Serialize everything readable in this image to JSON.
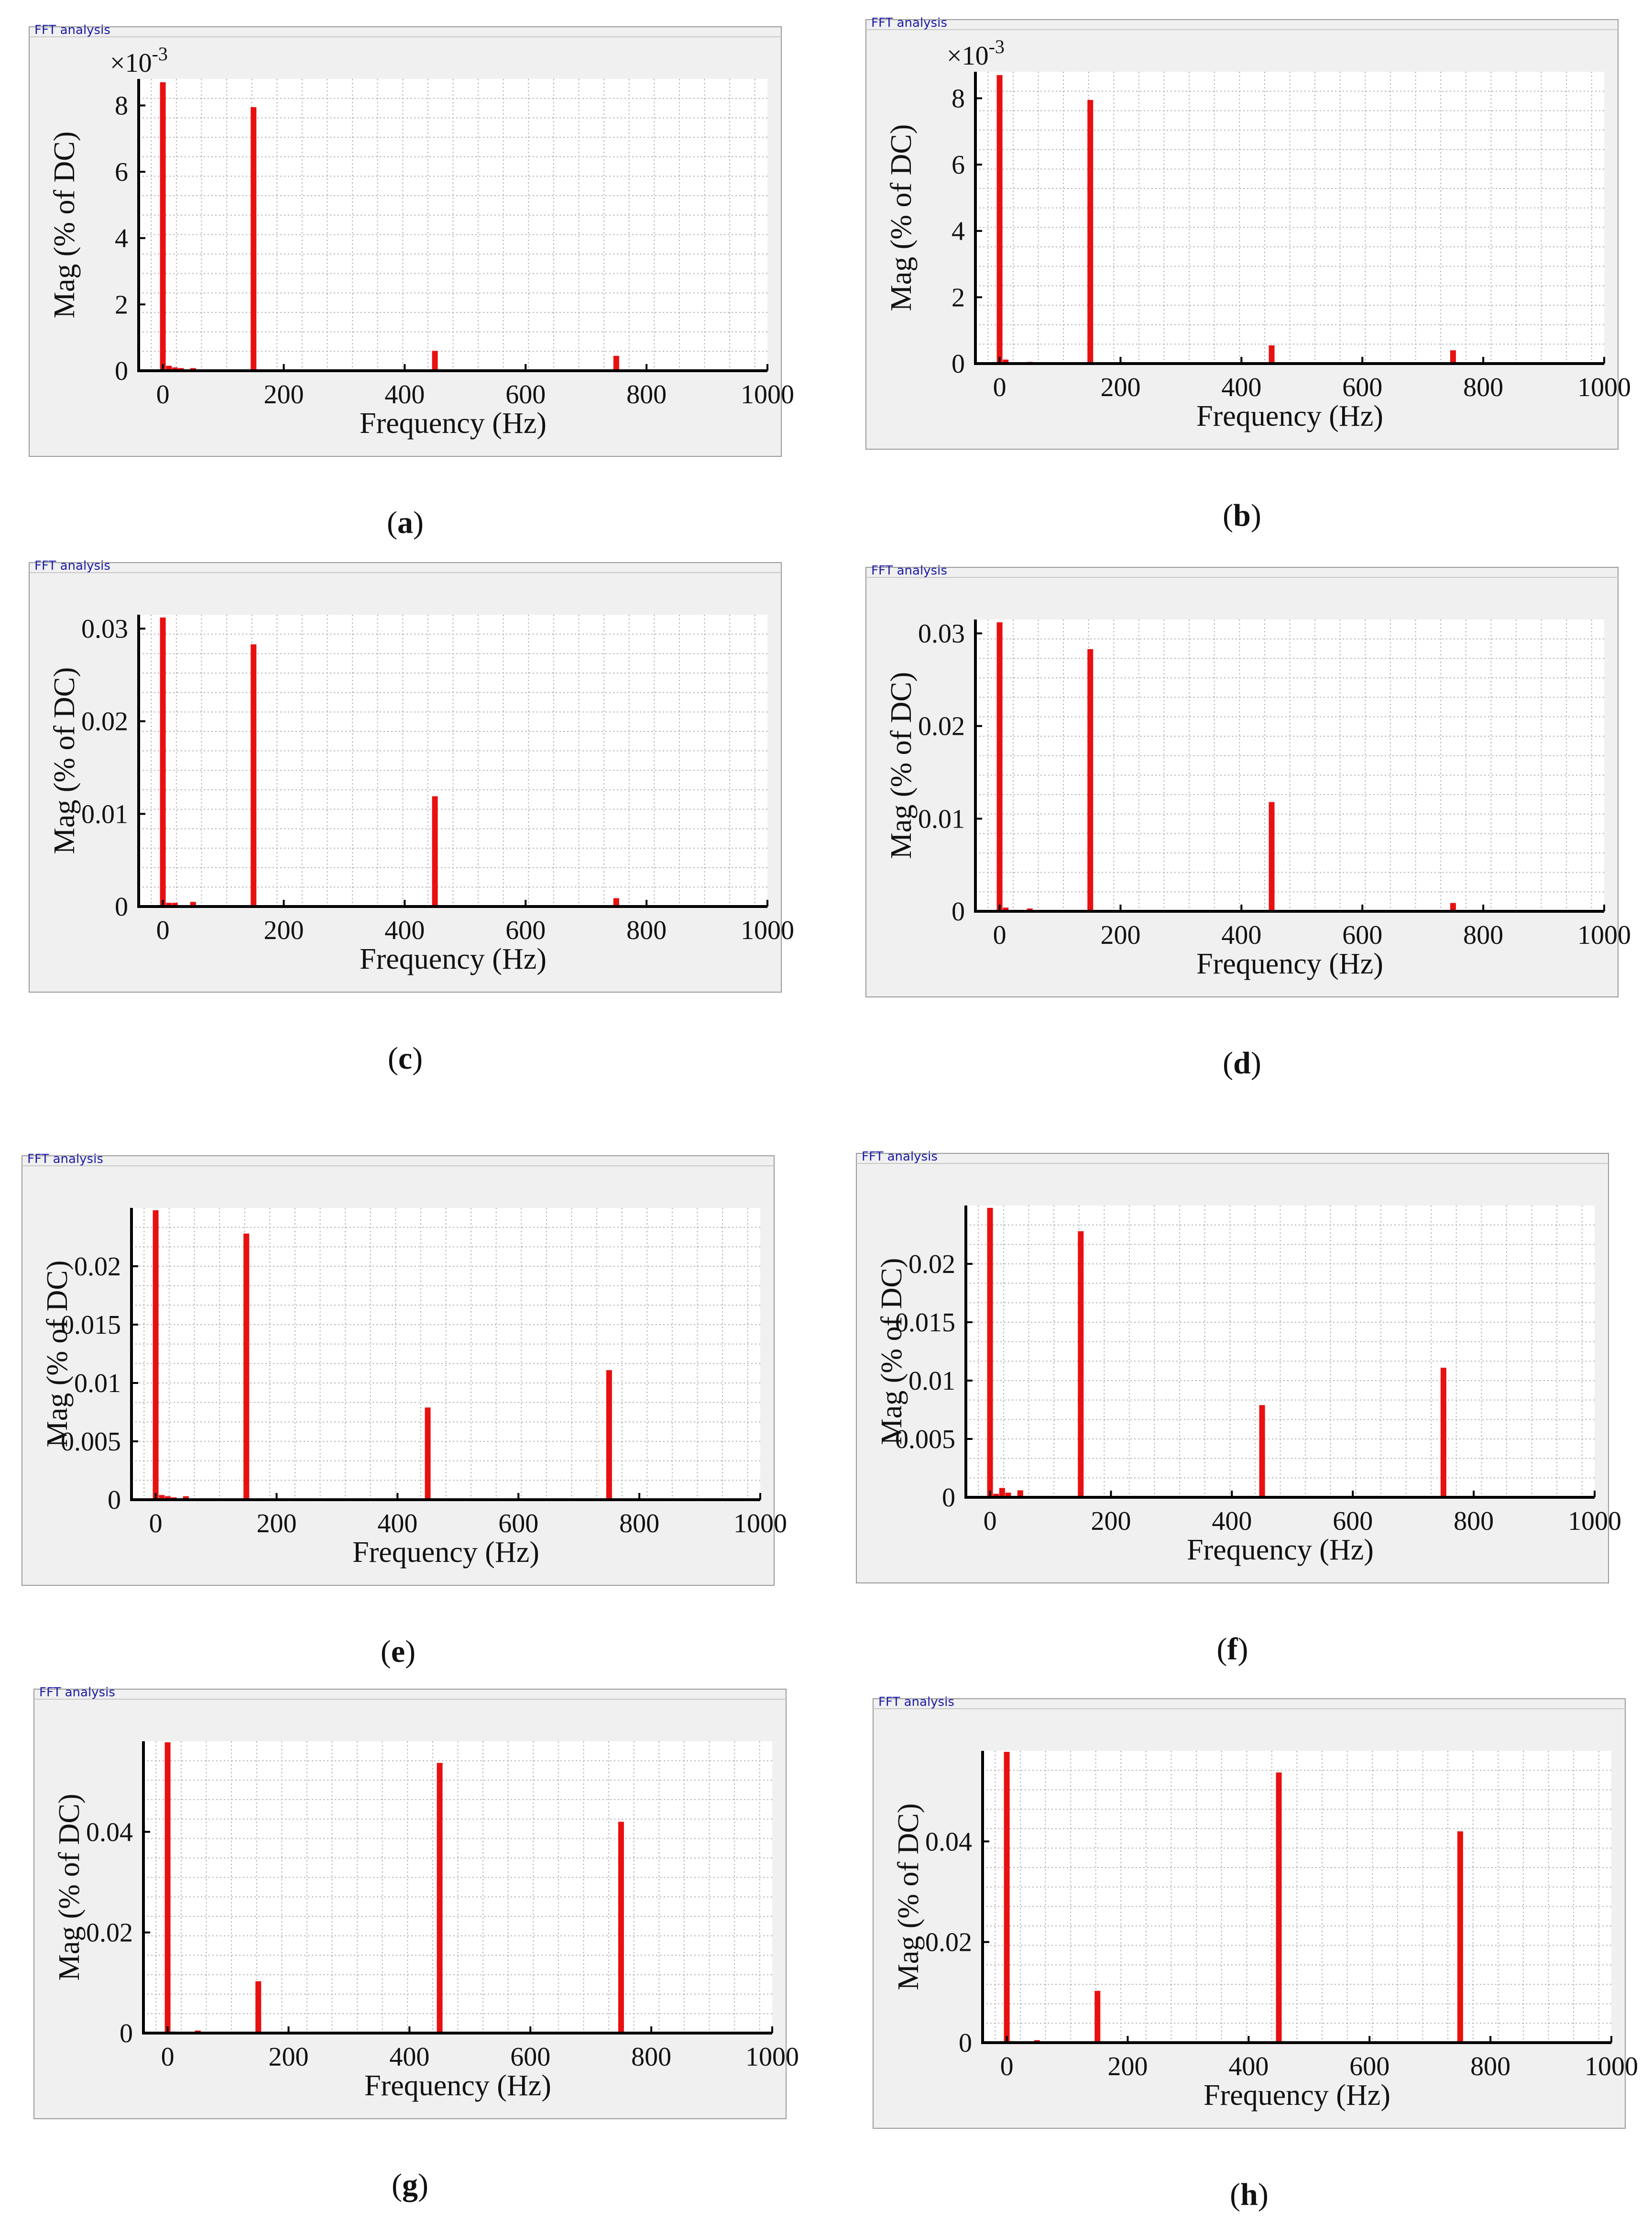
{
  "header_label": "FFT analysis",
  "colors": {
    "bar": "#e81010",
    "panel_bg": "#f0f0f0",
    "plot_bg": "#ffffff",
    "grid": "#b4b4b4",
    "title": "#1a1aa8"
  },
  "chart_data": [
    {
      "id": "a",
      "type": "bar",
      "caption_letter": "a",
      "header": "FFT analysis",
      "xlabel": "Frequency (Hz)",
      "ylabel": "Mag (% of DC)",
      "xlim": [
        -40,
        1000
      ],
      "ylim": [
        0,
        8.8
      ],
      "xticks": [
        "0",
        "200",
        "400",
        "600",
        "800",
        "1000"
      ],
      "yticks": [
        "0",
        "2",
        "4",
        "6",
        "8"
      ],
      "scale_prefix": "×10",
      "scale_exponent": "-3",
      "bars": [
        {
          "x": 0,
          "y": 8.7
        },
        {
          "x": 10,
          "y": 0.15
        },
        {
          "x": 20,
          "y": 0.1
        },
        {
          "x": 30,
          "y": 0.08
        },
        {
          "x": 50,
          "y": 0.08
        },
        {
          "x": 150,
          "y": 7.95
        },
        {
          "x": 450,
          "y": 0.6
        },
        {
          "x": 750,
          "y": 0.45
        }
      ]
    },
    {
      "id": "b",
      "type": "bar",
      "caption_letter": "b",
      "header": "FFT analysis",
      "xlabel": "Frequency (Hz)",
      "ylabel": "Mag (% of DC)",
      "xlim": [
        -40,
        1000
      ],
      "ylim": [
        0,
        8.8
      ],
      "xticks": [
        "0",
        "200",
        "400",
        "600",
        "800",
        "1000"
      ],
      "yticks": [
        "0",
        "2",
        "4",
        "6",
        "8"
      ],
      "scale_prefix": "×10",
      "scale_exponent": "-3",
      "bars": [
        {
          "x": 0,
          "y": 8.7
        },
        {
          "x": 10,
          "y": 0.12
        },
        {
          "x": 50,
          "y": 0.05
        },
        {
          "x": 150,
          "y": 7.95
        },
        {
          "x": 450,
          "y": 0.55
        },
        {
          "x": 750,
          "y": 0.4
        }
      ]
    },
    {
      "id": "c",
      "type": "bar",
      "caption_letter": "c",
      "header": "FFT analysis",
      "xlabel": "Frequency (Hz)",
      "ylabel": "Mag (% of DC)",
      "xlim": [
        -40,
        1000
      ],
      "ylim": [
        0,
        0.0315
      ],
      "xticks": [
        "0",
        "200",
        "400",
        "600",
        "800",
        "1000"
      ],
      "yticks": [
        "0",
        "0.01",
        "0.02",
        "0.03"
      ],
      "bars": [
        {
          "x": 0,
          "y": 0.0312
        },
        {
          "x": 10,
          "y": 0.0004
        },
        {
          "x": 20,
          "y": 0.0004
        },
        {
          "x": 50,
          "y": 0.0005
        },
        {
          "x": 150,
          "y": 0.0283
        },
        {
          "x": 450,
          "y": 0.0119
        },
        {
          "x": 750,
          "y": 0.0009
        }
      ]
    },
    {
      "id": "d",
      "type": "bar",
      "caption_letter": "d",
      "header": "FFT analysis",
      "xlabel": "Frequency (Hz)",
      "ylabel": "Mag (% of DC)",
      "xlim": [
        -40,
        1000
      ],
      "ylim": [
        0,
        0.0315
      ],
      "xticks": [
        "0",
        "200",
        "400",
        "600",
        "800",
        "1000"
      ],
      "yticks": [
        "0",
        "0.01",
        "0.02",
        "0.03"
      ],
      "bars": [
        {
          "x": 0,
          "y": 0.0312
        },
        {
          "x": 10,
          "y": 0.0004
        },
        {
          "x": 50,
          "y": 0.0003
        },
        {
          "x": 150,
          "y": 0.0283
        },
        {
          "x": 450,
          "y": 0.0118
        },
        {
          "x": 750,
          "y": 0.0009
        }
      ]
    },
    {
      "id": "e",
      "type": "bar",
      "caption_letter": "e",
      "header": "FFT analysis",
      "xlabel": "Frequency (Hz)",
      "ylabel": "Mag (% of DC)",
      "xlim": [
        -40,
        1000
      ],
      "ylim": [
        0,
        0.025
      ],
      "xticks": [
        "0",
        "200",
        "400",
        "600",
        "800",
        "1000"
      ],
      "yticks": [
        "0",
        "0.005",
        "0.01",
        "0.015",
        "0.02"
      ],
      "bars": [
        {
          "x": 0,
          "y": 0.0248
        },
        {
          "x": 10,
          "y": 0.0004
        },
        {
          "x": 20,
          "y": 0.0003
        },
        {
          "x": 30,
          "y": 0.0002
        },
        {
          "x": 50,
          "y": 0.0003
        },
        {
          "x": 150,
          "y": 0.0228
        },
        {
          "x": 450,
          "y": 0.0079
        },
        {
          "x": 750,
          "y": 0.0111
        }
      ]
    },
    {
      "id": "f",
      "type": "bar",
      "caption_letter": "f",
      "header": "FFT analysis",
      "xlabel": "Frequency (Hz)",
      "ylabel": "Mag (% of DC)",
      "xlim": [
        -40,
        1000
      ],
      "ylim": [
        0,
        0.025
      ],
      "xticks": [
        "0",
        "200",
        "400",
        "600",
        "800",
        "1000"
      ],
      "yticks": [
        "0",
        "0.005",
        "0.01",
        "0.015",
        "0.02"
      ],
      "bars": [
        {
          "x": 0,
          "y": 0.0248
        },
        {
          "x": 10,
          "y": 0.0003
        },
        {
          "x": 20,
          "y": 0.0008
        },
        {
          "x": 30,
          "y": 0.0004
        },
        {
          "x": 50,
          "y": 0.0006
        },
        {
          "x": 150,
          "y": 0.0228
        },
        {
          "x": 450,
          "y": 0.0079
        },
        {
          "x": 750,
          "y": 0.0111
        }
      ]
    },
    {
      "id": "g",
      "type": "bar",
      "caption_letter": "g",
      "header": "FFT analysis",
      "xlabel": "Frequency (Hz)",
      "ylabel": "Mag (% of DC)",
      "xlim": [
        -40,
        1000
      ],
      "ylim": [
        0,
        0.058
      ],
      "xticks": [
        "0",
        "200",
        "400",
        "600",
        "800",
        "1000"
      ],
      "yticks": [
        "0",
        "0.02",
        "0.04"
      ],
      "bars": [
        {
          "x": 0,
          "y": 0.0578
        },
        {
          "x": 10,
          "y": 0.0003
        },
        {
          "x": 50,
          "y": 0.0005
        },
        {
          "x": 150,
          "y": 0.0103
        },
        {
          "x": 450,
          "y": 0.0537
        },
        {
          "x": 750,
          "y": 0.042
        }
      ]
    },
    {
      "id": "h",
      "type": "bar",
      "caption_letter": "h",
      "header": "FFT analysis",
      "xlabel": "Frequency (Hz)",
      "ylabel": "Mag (% of DC)",
      "xlim": [
        -40,
        1000
      ],
      "ylim": [
        0,
        0.058
      ],
      "xticks": [
        "0",
        "200",
        "400",
        "600",
        "800",
        "1000"
      ],
      "yticks": [
        "0",
        "0.02",
        "0.04"
      ],
      "bars": [
        {
          "x": 0,
          "y": 0.0578
        },
        {
          "x": 10,
          "y": 0.0003
        },
        {
          "x": 50,
          "y": 0.0005
        },
        {
          "x": 150,
          "y": 0.0103
        },
        {
          "x": 450,
          "y": 0.0537
        },
        {
          "x": 750,
          "y": 0.042
        }
      ]
    }
  ]
}
